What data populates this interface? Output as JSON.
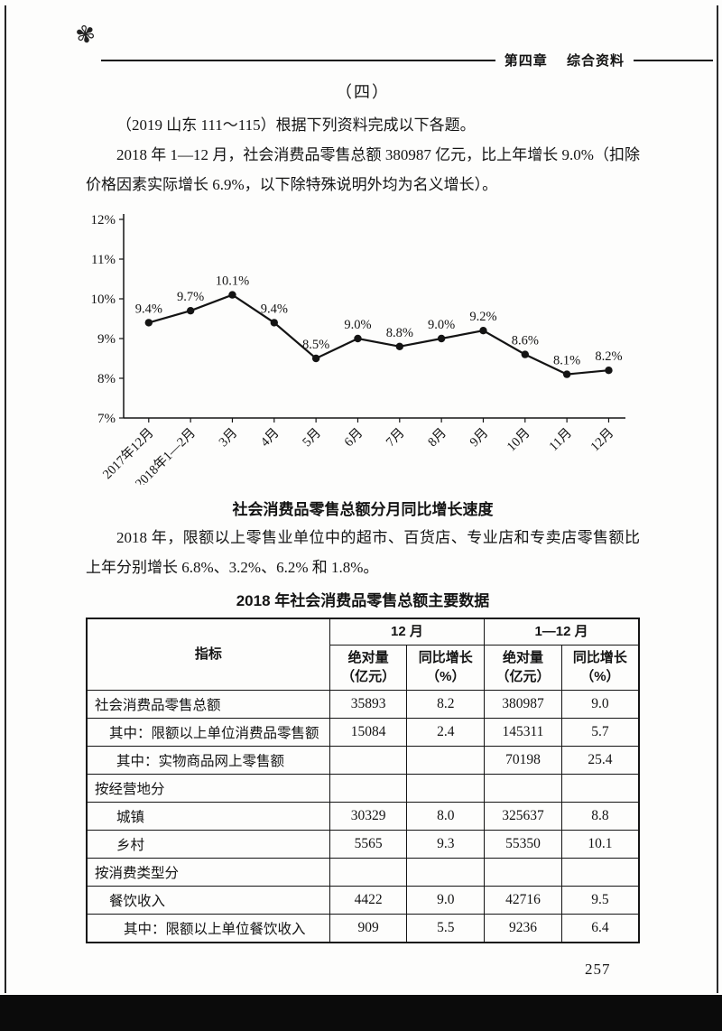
{
  "icons": {
    "ornament_glyph": "✾"
  },
  "page": {
    "header": {
      "chapter": "第四章",
      "section": "综合资料"
    },
    "section_title": "（四）",
    "intro": "（2019 山东 111～115）根据下列资料完成以下各题。",
    "paragraph1": "2018 年 1—12 月，社会消费品零售总额 380987 亿元，比上年增长 9.0%（扣除价格因素实际增长 6.9%，以下除特殊说明外均为名义增长）。",
    "chart_caption": "社会消费品零售总额分月同比增长速度",
    "paragraph2": "2018 年，限额以上零售业单位中的超市、百货店、专业店和专卖店零售额比上年分别增长 6.8%、3.2%、6.2% 和 1.8%。",
    "table_title": "2018 年社会消费品零售总额主要数据",
    "page_number": "257"
  },
  "chart_data": {
    "type": "line",
    "title": "社会消费品零售总额分月同比增长速度",
    "categories": [
      "2017年12月",
      "2018年1—2月",
      "3月",
      "4月",
      "5月",
      "6月",
      "7月",
      "8月",
      "9月",
      "10月",
      "11月",
      "12月"
    ],
    "values": [
      9.4,
      9.7,
      10.1,
      9.4,
      8.5,
      9.0,
      8.8,
      9.0,
      9.2,
      8.6,
      8.1,
      8.2
    ],
    "point_labels": [
      "9.4%",
      "9.7%",
      "10.1%",
      "9.4%",
      "8.5%",
      "9.0%",
      "8.8%",
      "9.0%",
      "9.2%",
      "8.6%",
      "8.1%",
      "8.2%"
    ],
    "ylim": [
      7,
      12
    ],
    "ytick_labels": [
      "7%",
      "8%",
      "9%",
      "10%",
      "11%",
      "12%"
    ],
    "xlabel": "",
    "ylabel": "",
    "grid": false,
    "legend": false
  },
  "table": {
    "headers": {
      "indicator": "指标",
      "group_dec": "12 月",
      "group_ytd": "1—12 月",
      "abs_line1": "绝对量",
      "abs_line2": "（亿元）",
      "growth_line1": "同比增长",
      "growth_line2": "（%）"
    },
    "rows": [
      {
        "label": "社会消费品零售总额",
        "indent": 0,
        "dec_abs": "35893",
        "dec_growth": "8.2",
        "ytd_abs": "380987",
        "ytd_growth": "9.0"
      },
      {
        "label": "其中：限额以上单位消费品零售额",
        "indent": 1,
        "dec_abs": "15084",
        "dec_growth": "2.4",
        "ytd_abs": "145311",
        "ytd_growth": "5.7"
      },
      {
        "label": "其中：实物商品网上零售额",
        "indent": 1.5,
        "dec_abs": "",
        "dec_growth": "",
        "ytd_abs": "70198",
        "ytd_growth": "25.4"
      },
      {
        "label": "按经营地分",
        "indent": 0,
        "dec_abs": "",
        "dec_growth": "",
        "ytd_abs": "",
        "ytd_growth": ""
      },
      {
        "label": "城镇",
        "indent": 1.5,
        "dec_abs": "30329",
        "dec_growth": "8.0",
        "ytd_abs": "325637",
        "ytd_growth": "8.8"
      },
      {
        "label": "乡村",
        "indent": 1.5,
        "dec_abs": "5565",
        "dec_growth": "9.3",
        "ytd_abs": "55350",
        "ytd_growth": "10.1"
      },
      {
        "label": "按消费类型分",
        "indent": 0,
        "dec_abs": "",
        "dec_growth": "",
        "ytd_abs": "",
        "ytd_growth": ""
      },
      {
        "label": "餐饮收入",
        "indent": 1,
        "dec_abs": "4422",
        "dec_growth": "9.0",
        "ytd_abs": "42716",
        "ytd_growth": "9.5"
      },
      {
        "label": "其中：限额以上单位餐饮收入",
        "indent": 2,
        "dec_abs": "909",
        "dec_growth": "5.5",
        "ytd_abs": "9236",
        "ytd_growth": "6.4"
      }
    ]
  }
}
